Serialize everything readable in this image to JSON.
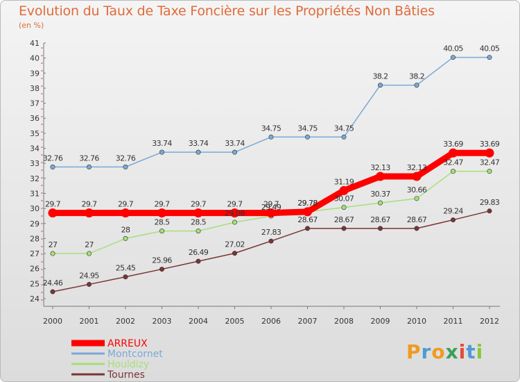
{
  "header": {
    "title": "Evolution du Taux de Taxe Foncière sur les Propriétés Non Bâties",
    "subtitle": "(en %)"
  },
  "logo": {
    "text": "Proxiti",
    "letters": [
      {
        "ch": "P",
        "color": "#f19a20"
      },
      {
        "ch": "r",
        "color": "#4f9ad6"
      },
      {
        "ch": "o",
        "color": "#f19a20"
      },
      {
        "ch": "x",
        "color": "#3aa05a"
      },
      {
        "ch": "i",
        "color": "#e34a3a"
      },
      {
        "ch": "t",
        "color": "#4f9ad6"
      },
      {
        "ch": "i",
        "color": "#8cc63e"
      }
    ]
  },
  "chart_data": {
    "type": "line",
    "title": "Evolution du Taux de Taxe Foncière sur les Propriétés Non Bâties",
    "ylabel": "(en %)",
    "xlabel": "",
    "x": [
      "2000",
      "2001",
      "2002",
      "2003",
      "2004",
      "2005",
      "2006",
      "2007",
      "2008",
      "2009",
      "2010",
      "2011",
      "2012"
    ],
    "ylim": [
      24,
      41
    ],
    "yticks": [
      "24",
      "25",
      "26",
      "27",
      "28",
      "29",
      "30",
      "31",
      "32",
      "33",
      "34",
      "35",
      "36",
      "37",
      "38",
      "39",
      "40",
      "41"
    ],
    "grid": false,
    "legend": "bottom-left",
    "series": [
      {
        "name": "ARREUX",
        "color": "#ff0000",
        "values": [
          29.7,
          29.7,
          29.7,
          29.7,
          29.7,
          29.7,
          29.7,
          29.78,
          31.19,
          32.13,
          32.13,
          33.69,
          33.69
        ],
        "labels": [
          "29.7",
          "29.7",
          "29.7",
          "29.7",
          "29.7",
          "29.7",
          "29.7",
          "29.78",
          "31.19",
          "32.13",
          "32.13",
          "33.69",
          "33.69"
        ]
      },
      {
        "name": "Montcornet",
        "color": "#7aa9d6",
        "values": [
          32.76,
          32.76,
          32.76,
          33.74,
          33.74,
          33.74,
          34.75,
          34.75,
          34.75,
          38.2,
          38.2,
          40.05,
          40.05
        ],
        "labels": [
          "32.76",
          "32.76",
          "32.76",
          "33.74",
          "33.74",
          "33.74",
          "34.75",
          "34.75",
          "34.75",
          "38.2",
          "38.2",
          "40.05",
          "40.05"
        ]
      },
      {
        "name": "Houldizy",
        "color": "#a6df79",
        "values": [
          27,
          27,
          28,
          28.5,
          28.5,
          29.08,
          29.49,
          29.78,
          30.07,
          30.37,
          30.66,
          32.47,
          32.47
        ],
        "labels": [
          "27",
          "27",
          "28",
          "28.5",
          "28.5",
          "29.08",
          "29.49",
          "29.78",
          "30.07",
          "30.37",
          "30.66",
          "32.47",
          "32.47"
        ]
      },
      {
        "name": "Tournes",
        "color": "#7a3535",
        "values": [
          24.46,
          24.95,
          25.45,
          25.96,
          26.49,
          27.02,
          27.83,
          28.67,
          28.67,
          28.67,
          28.67,
          29.24,
          29.83
        ],
        "labels": [
          "24.46",
          "24.95",
          "25.45",
          "25.96",
          "26.49",
          "27.02",
          "27.83",
          "28.67",
          "28.67",
          "28.67",
          "28.67",
          "29.24",
          "29.83"
        ]
      }
    ]
  }
}
